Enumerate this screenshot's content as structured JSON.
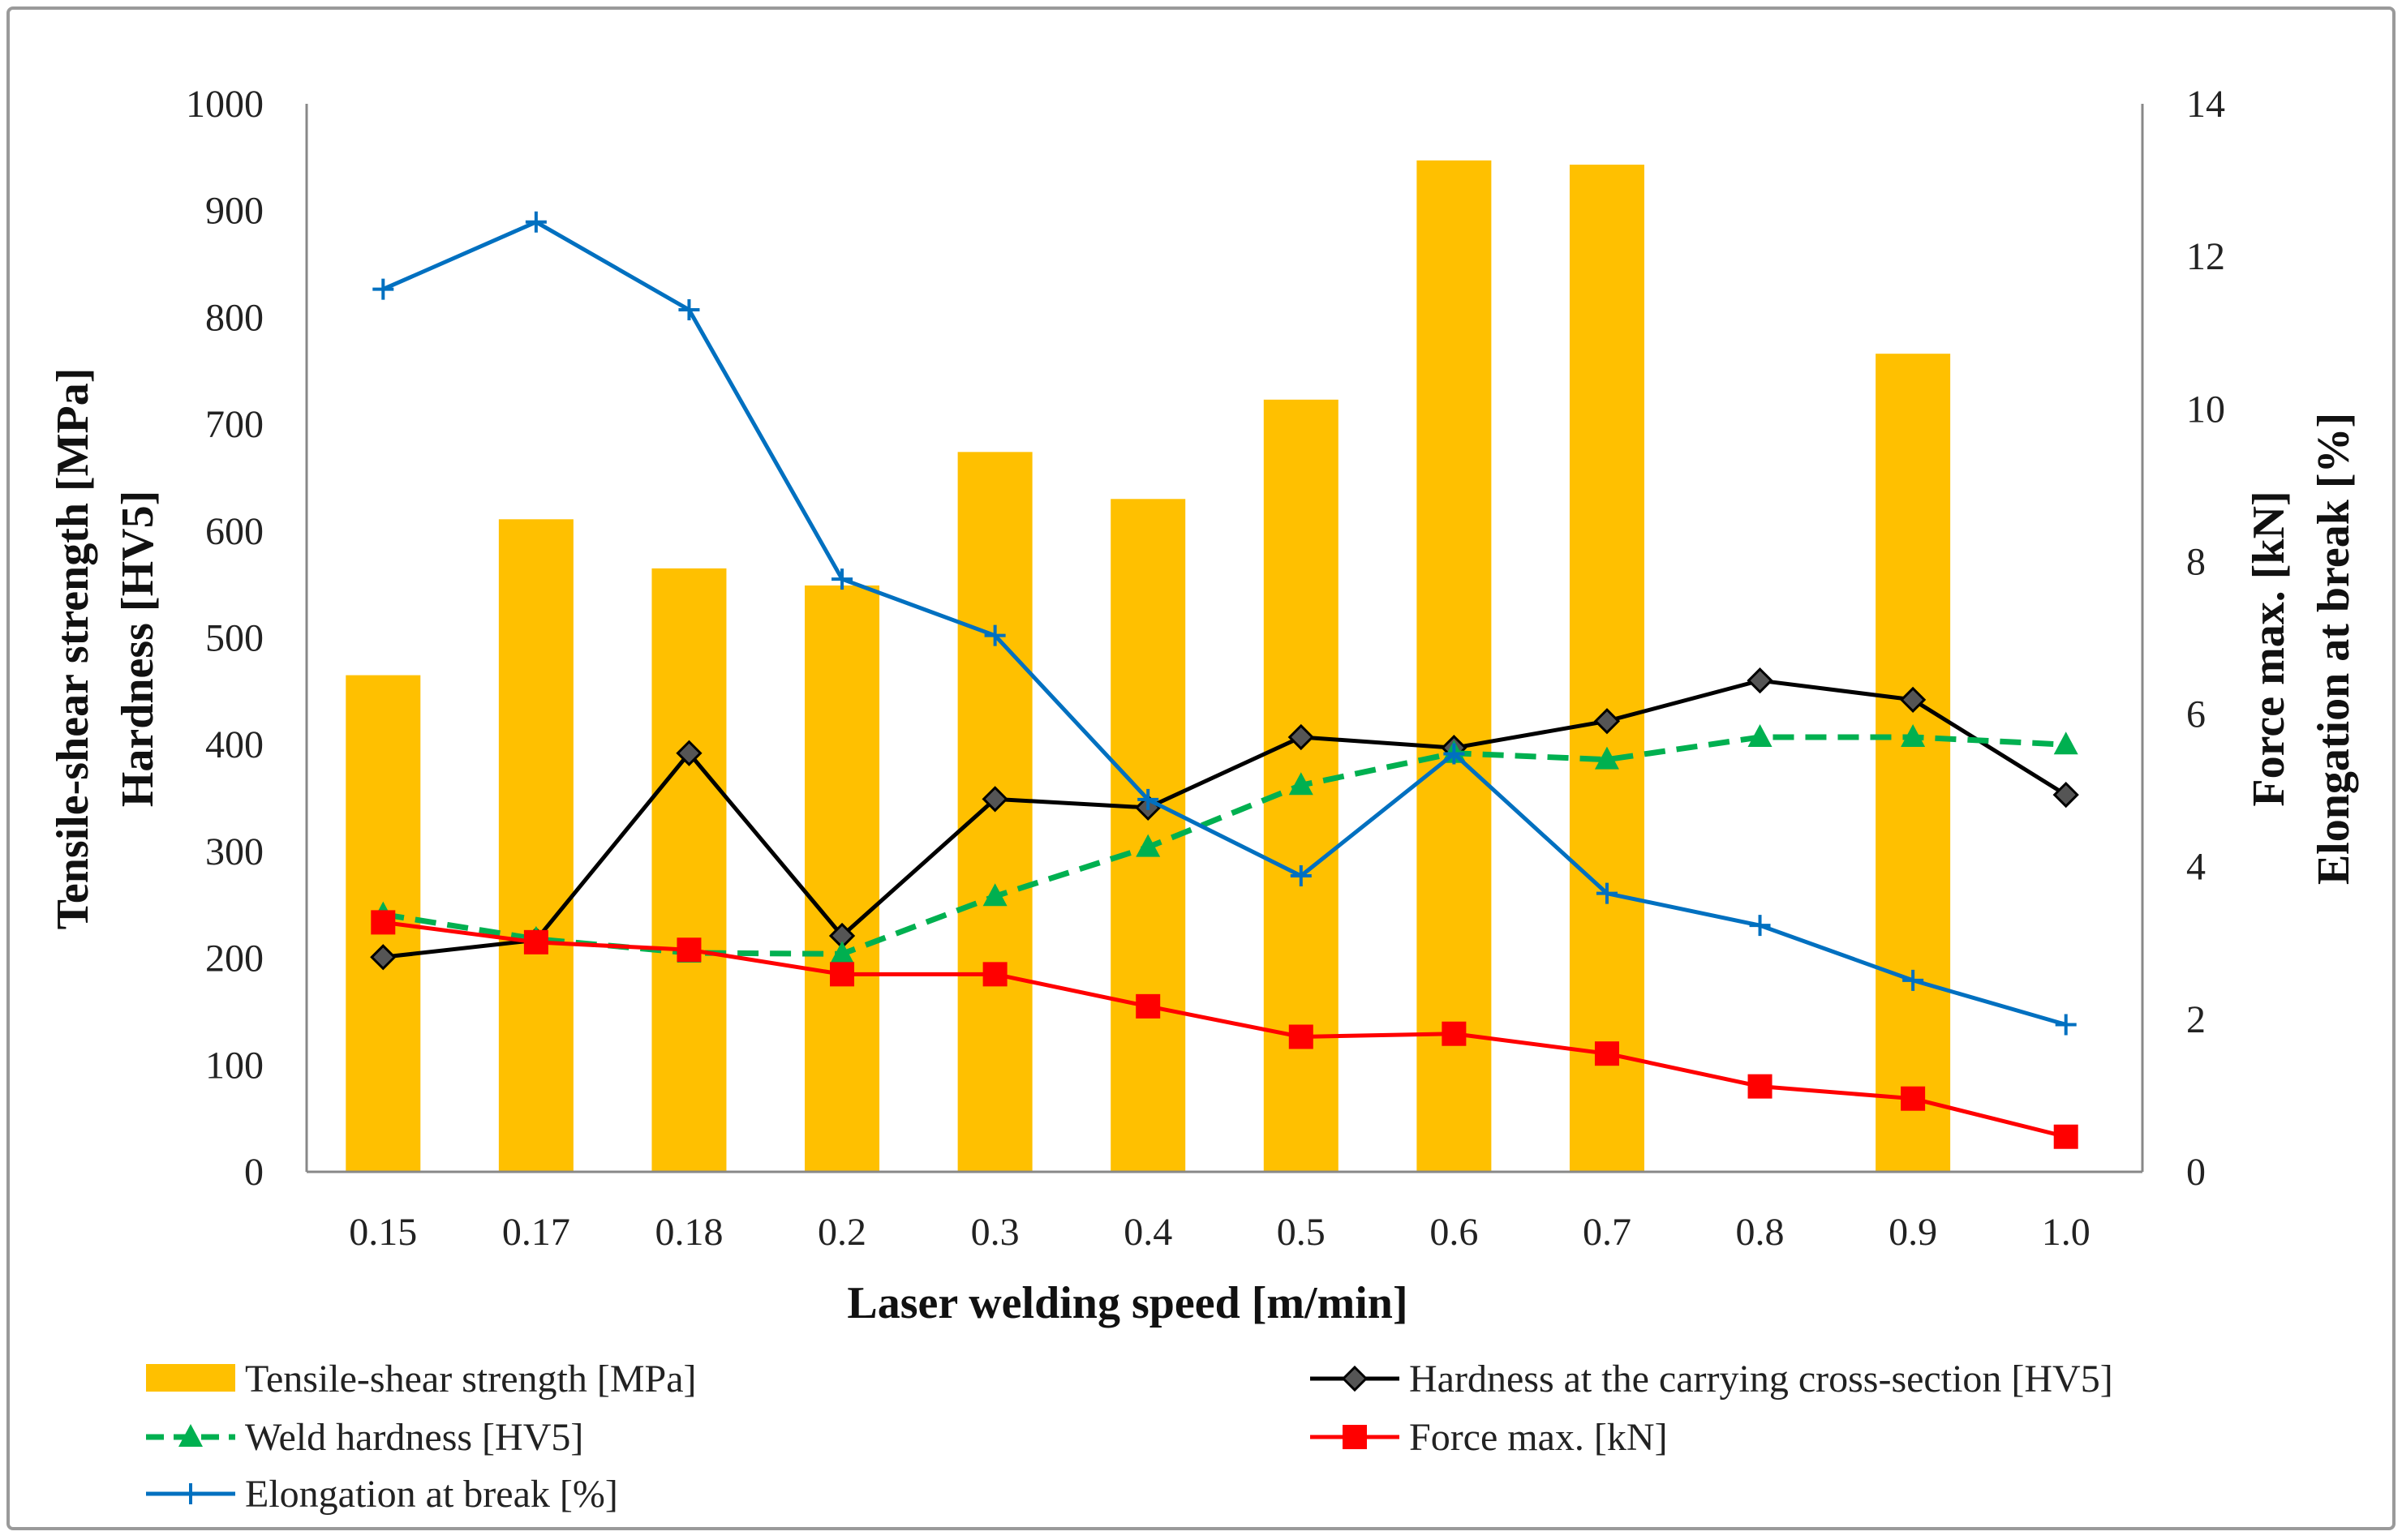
{
  "chart_data": {
    "type": "bar",
    "title": "",
    "xlabel": "Laser welding speed [m/min]",
    "ylabel": [
      "Tensile-shear strength [MPa]",
      "Hardness [HV5]"
    ],
    "y2label": [
      "Force max. [kN]",
      "Elongation at break  [%]"
    ],
    "categories": [
      "0.15",
      "0.17",
      "0.18",
      "0.2",
      "0.3",
      "0.4",
      "0.5",
      "0.6",
      "0.7",
      "0.8",
      "0.9",
      "1.0"
    ],
    "ylim": [
      0,
      1000
    ],
    "y2lim": [
      0,
      14
    ],
    "yticks": [
      "0",
      "100",
      "200",
      "300",
      "400",
      "500",
      "600",
      "700",
      "800",
      "900",
      "1000"
    ],
    "y2ticks": [
      "0",
      "2",
      "4",
      "6",
      "8",
      "10",
      "12",
      "14"
    ],
    "grid": false,
    "legend_position": "bottom",
    "series": [
      {
        "name": "Tensile-shear strength [MPa]",
        "type": "bar",
        "axis": "left",
        "color": "#FFC000",
        "values": [
          465,
          611,
          565,
          549,
          674,
          630,
          723,
          947,
          943,
          null,
          766,
          null
        ]
      },
      {
        "name": "Hardness at the carrying cross-section [HV5]",
        "type": "line",
        "axis": "left",
        "color": "#000000",
        "marker": "diamond",
        "values": [
          201,
          217,
          392,
          221,
          349,
          341,
          407,
          397,
          422,
          460,
          442,
          353
        ]
      },
      {
        "name": "Weld hardness [HV5]",
        "type": "line",
        "axis": "left",
        "color": "#00B050",
        "marker": "triangle",
        "dashed": true,
        "values": [
          241,
          218,
          205,
          204,
          258,
          304,
          362,
          392,
          386,
          407,
          407,
          400
        ]
      },
      {
        "name": "Force max. [kN]",
        "type": "line",
        "axis": "right",
        "color": "#FF0000",
        "marker": "square",
        "values": [
          3.27,
          3.01,
          2.91,
          2.59,
          2.59,
          2.17,
          1.77,
          1.81,
          1.55,
          1.12,
          0.96,
          0.46
        ]
      },
      {
        "name": "Elongation at break [%]",
        "type": "line",
        "axis": "right",
        "color": "#0070C0",
        "marker": "plus",
        "values": [
          11.57,
          12.45,
          11.3,
          7.77,
          7.03,
          4.88,
          3.88,
          5.48,
          3.65,
          3.23,
          2.51,
          1.93
        ]
      }
    ]
  }
}
